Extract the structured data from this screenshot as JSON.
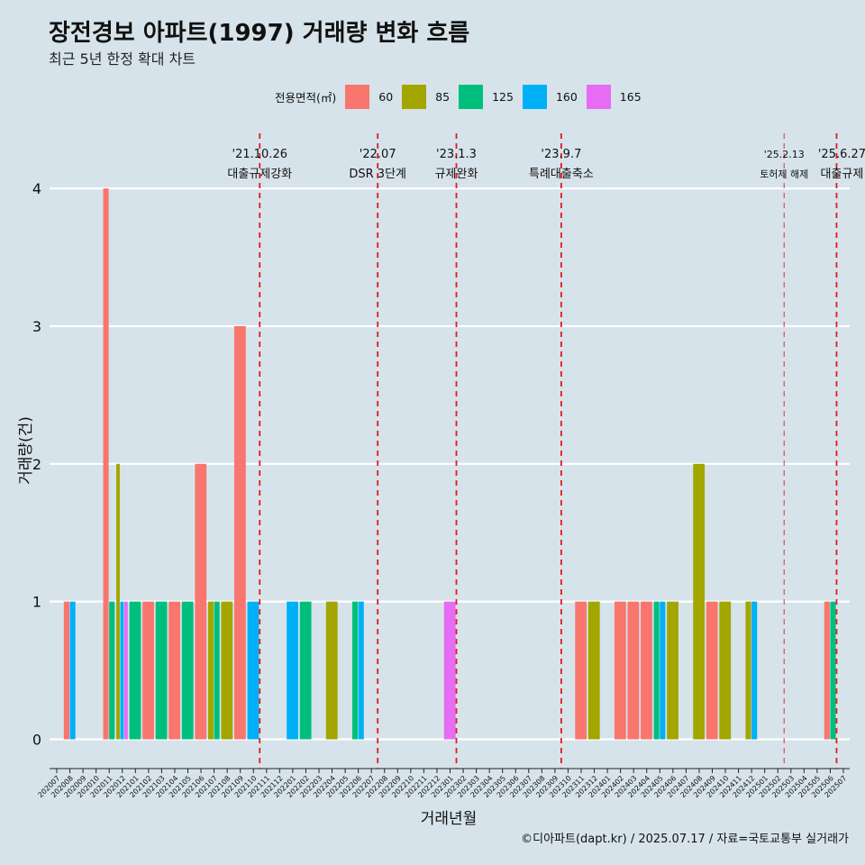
{
  "title": "장전경보 아파트(1997) 거래량 변화 흐름",
  "subtitle": "최근 5년 한정 확대 차트",
  "caption": "©디아파트(dapt.kr) / 2025.07.17 / 자료=국토교통부 실거래가",
  "colors": {
    "background": "#d6e3ea",
    "grid": "#ffffff",
    "event_line": "#e41a1c"
  },
  "chart_data": {
    "type": "bar",
    "xlabel": "거래년월",
    "ylabel": "거래량(건)",
    "ylim": [
      -0.18,
      4.4
    ],
    "yticks": [
      0,
      1,
      2,
      3,
      4
    ],
    "grid": true,
    "legend": {
      "title": "전용면적(㎡)",
      "placement": "top",
      "entries": [
        {
          "label": "60",
          "color": "#f8766d"
        },
        {
          "label": "85",
          "color": "#a3a500"
        },
        {
          "label": "125",
          "color": "#00bf7d"
        },
        {
          "label": "160",
          "color": "#00b0f6"
        },
        {
          "label": "165",
          "color": "#e76bf3"
        }
      ]
    },
    "categories": [
      "202007",
      "202008",
      "202009",
      "202010",
      "202011",
      "202012",
      "202101",
      "202102",
      "202103",
      "202104",
      "202105",
      "202106",
      "202107",
      "202108",
      "202109",
      "202110",
      "202111",
      "202112",
      "202201",
      "202202",
      "202203",
      "202204",
      "202205",
      "202206",
      "202207",
      "202208",
      "202209",
      "202210",
      "202211",
      "202212",
      "202301",
      "202302",
      "202303",
      "202304",
      "202305",
      "202306",
      "202307",
      "202308",
      "202309",
      "202310",
      "202311",
      "202312",
      "202401",
      "202402",
      "202403",
      "202404",
      "202405",
      "202406",
      "202407",
      "202408",
      "202409",
      "202410",
      "202411",
      "202412",
      "202501",
      "202502",
      "202503",
      "202504",
      "202505",
      "202506",
      "202507"
    ],
    "series": [
      {
        "name": "60",
        "values": [
          0,
          1,
          0,
          0,
          4,
          0,
          0,
          1,
          0,
          1,
          0,
          2,
          0,
          0,
          3,
          0,
          0,
          0,
          0,
          0,
          0,
          0,
          0,
          0,
          0,
          0,
          0,
          0,
          0,
          0,
          0,
          0,
          0,
          0,
          0,
          0,
          0,
          0,
          0,
          0,
          1,
          0,
          0,
          1,
          1,
          1,
          0,
          0,
          0,
          0,
          1,
          0,
          0,
          0,
          0,
          0,
          0,
          0,
          0,
          1,
          0
        ]
      },
      {
        "name": "85",
        "values": [
          0,
          0,
          0,
          0,
          0,
          2,
          0,
          0,
          0,
          0,
          0,
          0,
          1,
          1,
          0,
          0,
          0,
          0,
          0,
          0,
          0,
          1,
          0,
          0,
          0,
          0,
          0,
          0,
          0,
          0,
          0,
          0,
          0,
          0,
          0,
          0,
          0,
          0,
          0,
          0,
          0,
          1,
          0,
          0,
          0,
          0,
          0,
          1,
          0,
          2,
          0,
          1,
          0,
          1,
          0,
          0,
          0,
          0,
          0,
          0,
          0
        ]
      },
      {
        "name": "125",
        "values": [
          0,
          0,
          0,
          0,
          1,
          0,
          1,
          0,
          1,
          0,
          1,
          0,
          1,
          0,
          0,
          0,
          0,
          0,
          0,
          1,
          0,
          0,
          0,
          1,
          0,
          0,
          0,
          0,
          0,
          0,
          0,
          0,
          0,
          0,
          0,
          0,
          0,
          0,
          0,
          0,
          0,
          0,
          0,
          0,
          0,
          0,
          1,
          0,
          0,
          0,
          0,
          0,
          0,
          0,
          0,
          0,
          0,
          0,
          0,
          1,
          0
        ]
      },
      {
        "name": "160",
        "values": [
          0,
          1,
          0,
          0,
          0,
          1,
          0,
          0,
          0,
          0,
          0,
          0,
          0,
          0,
          0,
          1,
          0,
          0,
          1,
          0,
          0,
          0,
          0,
          1,
          0,
          0,
          0,
          0,
          0,
          0,
          0,
          0,
          0,
          0,
          0,
          0,
          0,
          0,
          0,
          0,
          0,
          0,
          0,
          0,
          0,
          0,
          1,
          0,
          0,
          0,
          0,
          0,
          0,
          1,
          0,
          0,
          0,
          0,
          0,
          0,
          0
        ]
      },
      {
        "name": "165",
        "values": [
          0,
          0,
          0,
          0,
          0,
          1,
          0,
          0,
          0,
          0,
          0,
          0,
          0,
          0,
          0,
          0,
          0,
          0,
          0,
          0,
          0,
          0,
          0,
          0,
          0,
          0,
          0,
          0,
          0,
          0,
          1,
          0,
          0,
          0,
          0,
          0,
          0,
          0,
          0,
          0,
          0,
          0,
          0,
          0,
          0,
          0,
          0,
          0,
          0,
          0,
          0,
          0,
          0,
          0,
          0,
          0,
          0,
          0,
          0,
          0,
          0
        ]
      }
    ],
    "annotations": [
      {
        "x": "202110",
        "date": "'21.10.26",
        "label": "대출규제강화",
        "style": "dashed",
        "size": "large"
      },
      {
        "x": "202207",
        "date": "'22.07",
        "label": "DSR 3단계",
        "style": "dashed",
        "size": "large"
      },
      {
        "x": "202301",
        "date": "'23.1.3",
        "label": "규제완화",
        "style": "dashed",
        "size": "large"
      },
      {
        "x": "202309",
        "date": "'23.9.7",
        "label": "특례대출축소",
        "style": "dashed",
        "size": "large"
      },
      {
        "x": "202502",
        "date": "'25.2.13",
        "label": "토허제 해제",
        "style": "dashed-light",
        "size": "small"
      },
      {
        "x": "202506",
        "date": "'25.6.27",
        "label": "대출규제",
        "style": "dashed",
        "size": "large"
      }
    ]
  }
}
